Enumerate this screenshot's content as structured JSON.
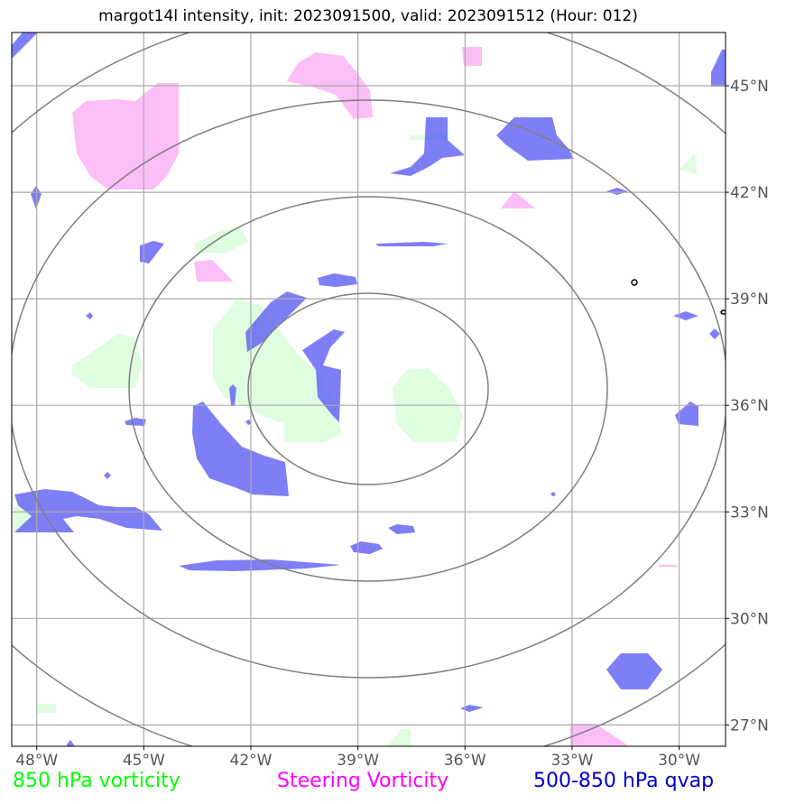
{
  "title": "margot14l intensity, init: 2023091500, valid: 2023091512 (Hour: 012)",
  "map": {
    "lon_range": [
      -48.7,
      -28.7
    ],
    "lat_range": [
      26.4,
      46.5
    ],
    "lon_ticks": [
      -48,
      -45,
      -42,
      -39,
      -36,
      -33,
      -30
    ],
    "lat_ticks": [
      27,
      30,
      33,
      36,
      39,
      42,
      45
    ],
    "lon_tick_labels": [
      "48°W",
      "45°W",
      "42°W",
      "39°W",
      "36°W",
      "33°W",
      "30°W"
    ],
    "lat_tick_labels": [
      "27°N",
      "30°N",
      "33°N",
      "36°N",
      "39°N",
      "42°N",
      "45°N"
    ],
    "grid": true,
    "range_rings": {
      "center_lon": -38.8,
      "center_lat": 36.5,
      "count": 4
    }
  },
  "legend": {
    "vorticity_850": {
      "label": "850 hPa vorticity",
      "color": "#00ff00"
    },
    "steering_vorticity": {
      "label": "Steering Vorticity",
      "color": "#ff00ff"
    },
    "qvap_500_850": {
      "label": "500-850 hPa qvap",
      "color": "#0000cc"
    }
  },
  "fills": {
    "green": "#dcfddc",
    "pink": "#fbbbf7",
    "blue": "#5a5af5"
  }
}
